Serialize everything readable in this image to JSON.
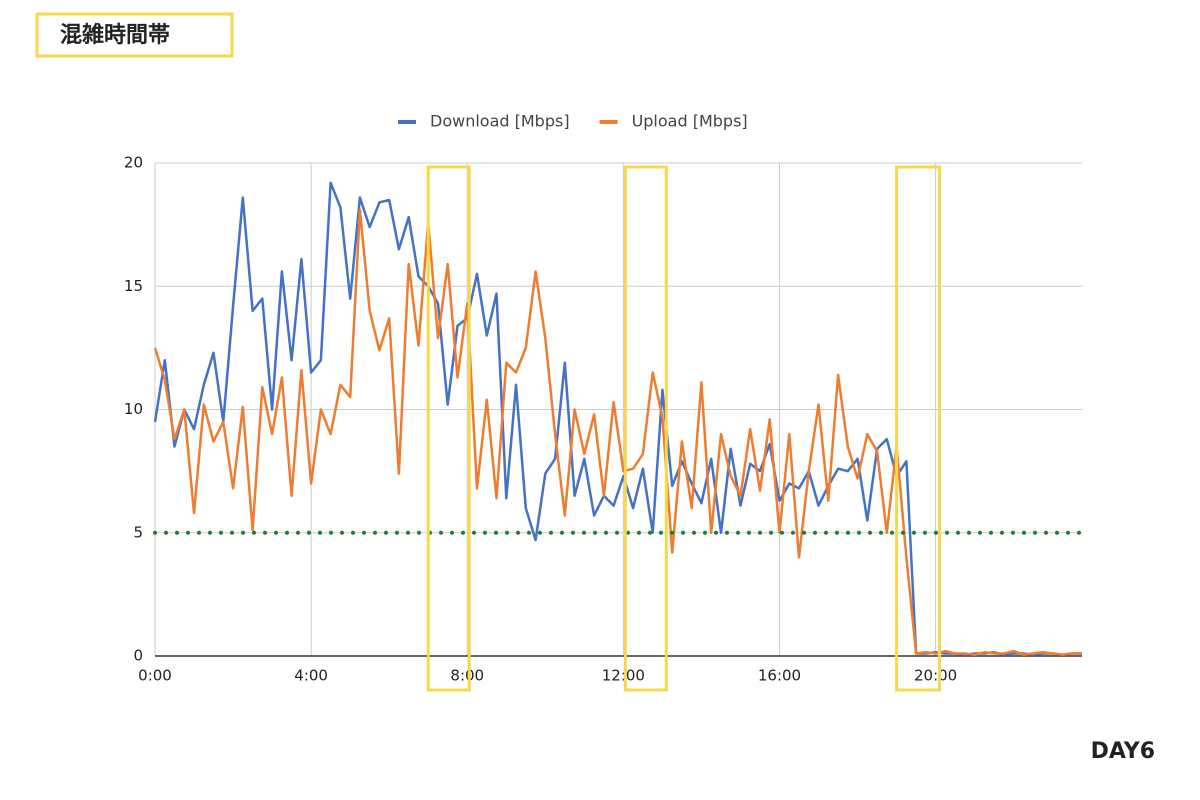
{
  "header": {
    "label": "混雑時間帯"
  },
  "footer": {
    "label": "DAY6"
  },
  "chart_data": {
    "type": "line",
    "x": [
      0,
      0.25,
      0.5,
      0.75,
      1,
      1.25,
      1.5,
      1.75,
      2,
      2.25,
      2.5,
      2.75,
      3,
      3.25,
      3.5,
      3.75,
      4,
      4.25,
      4.5,
      4.75,
      5,
      5.25,
      5.5,
      5.75,
      6,
      6.25,
      6.5,
      6.75,
      7,
      7.25,
      7.5,
      7.75,
      8,
      8.25,
      8.5,
      8.75,
      9,
      9.25,
      9.5,
      9.75,
      10,
      10.25,
      10.5,
      10.75,
      11,
      11.25,
      11.5,
      11.75,
      12,
      12.25,
      12.5,
      12.75,
      13,
      13.25,
      13.5,
      13.75,
      14,
      14.25,
      14.5,
      14.75,
      15,
      15.25,
      15.5,
      15.75,
      16,
      16.25,
      16.5,
      16.75,
      17,
      17.25,
      17.5,
      17.75,
      18,
      18.25,
      18.5,
      18.75,
      19,
      19.25,
      19.5,
      19.75,
      20,
      20.25,
      20.5,
      20.75,
      21,
      21.25,
      21.5,
      21.75,
      22,
      22.25,
      22.5,
      22.75,
      23,
      23.25,
      23.5,
      23.75
    ],
    "series": [
      {
        "name": "Download [Mbps]",
        "color": "#4472c4",
        "values": [
          9.5,
          12,
          8.5,
          10,
          9.2,
          11,
          12.3,
          9.5,
          14.2,
          18.6,
          14,
          14.5,
          10,
          15.6,
          12,
          16.1,
          11.5,
          12,
          19.2,
          18.2,
          14.5,
          18.6,
          17.4,
          18.4,
          18.5,
          16.5,
          17.8,
          15.4,
          15,
          14.3,
          10.2,
          13.4,
          13.7,
          15.5,
          13,
          14.7,
          6.4,
          11,
          6,
          4.7,
          7.4,
          8,
          11.9,
          6.5,
          8,
          5.7,
          6.5,
          6.1,
          7.3,
          6,
          7.6,
          5,
          10.8,
          6.9,
          7.9,
          7,
          6.2,
          8,
          5,
          8.4,
          6.1,
          7.8,
          7.5,
          8.6,
          6.3,
          7,
          6.8,
          7.5,
          6.1,
          6.9,
          7.6,
          7.5,
          8,
          5.5,
          8.4,
          8.8,
          7.3,
          7.9,
          0.1,
          0.1,
          0.15,
          0.1,
          0.1,
          0.05,
          0.1,
          0.1,
          0.15,
          0.05,
          0.1,
          0.1,
          0.05,
          0.1,
          0.1,
          0.05,
          0.1,
          0.1
        ]
      },
      {
        "name": "Upload [Mbps]",
        "color": "#ed7d31",
        "values": [
          12.5,
          11.2,
          8.8,
          10,
          5.8,
          10.2,
          8.7,
          9.5,
          6.8,
          10.1,
          5.1,
          10.9,
          9,
          11.3,
          6.5,
          11.6,
          7,
          10,
          9,
          11,
          10.5,
          18.1,
          14,
          12.4,
          13.7,
          7.4,
          15.9,
          12.6,
          17.6,
          12.9,
          15.9,
          11.3,
          14.3,
          6.8,
          10.4,
          6.4,
          11.9,
          11.5,
          12.5,
          15.6,
          12.9,
          9,
          5.7,
          10,
          8.2,
          9.8,
          6.5,
          10.3,
          7.5,
          7.6,
          8.2,
          11.5,
          9.7,
          4.2,
          8.7,
          6,
          11.1,
          5,
          9,
          7.3,
          6.5,
          9.2,
          6.7,
          9.6,
          5,
          9,
          4,
          7.5,
          10.2,
          6.3,
          11.4,
          8.5,
          7.2,
          9,
          8.3,
          5,
          8.5,
          4,
          0.1,
          0.15,
          0.1,
          0.2,
          0.1,
          0.1,
          0.05,
          0.15,
          0.1,
          0.1,
          0.2,
          0.05,
          0.1,
          0.15,
          0.1,
          0.05,
          0.1,
          0.1
        ]
      }
    ],
    "xlim": [
      0,
      23.75
    ],
    "xticks": [
      {
        "value": 0,
        "label": "0:00"
      },
      {
        "value": 4,
        "label": "4:00"
      },
      {
        "value": 8,
        "label": "8:00"
      },
      {
        "value": 12,
        "label": "12:00"
      },
      {
        "value": 16,
        "label": "16:00"
      },
      {
        "value": 20,
        "label": "20:00"
      }
    ],
    "ylim": [
      0,
      20
    ],
    "yticks": [
      0,
      5,
      10,
      15,
      20
    ],
    "grid": true,
    "threshold": 5,
    "threshold_color": "#1e7b34",
    "highlights": [
      [
        7.0,
        8.05
      ],
      [
        12.05,
        13.1
      ],
      [
        19.0,
        20.1
      ]
    ],
    "highlight_color": "#f5d94a",
    "legend": "top"
  }
}
